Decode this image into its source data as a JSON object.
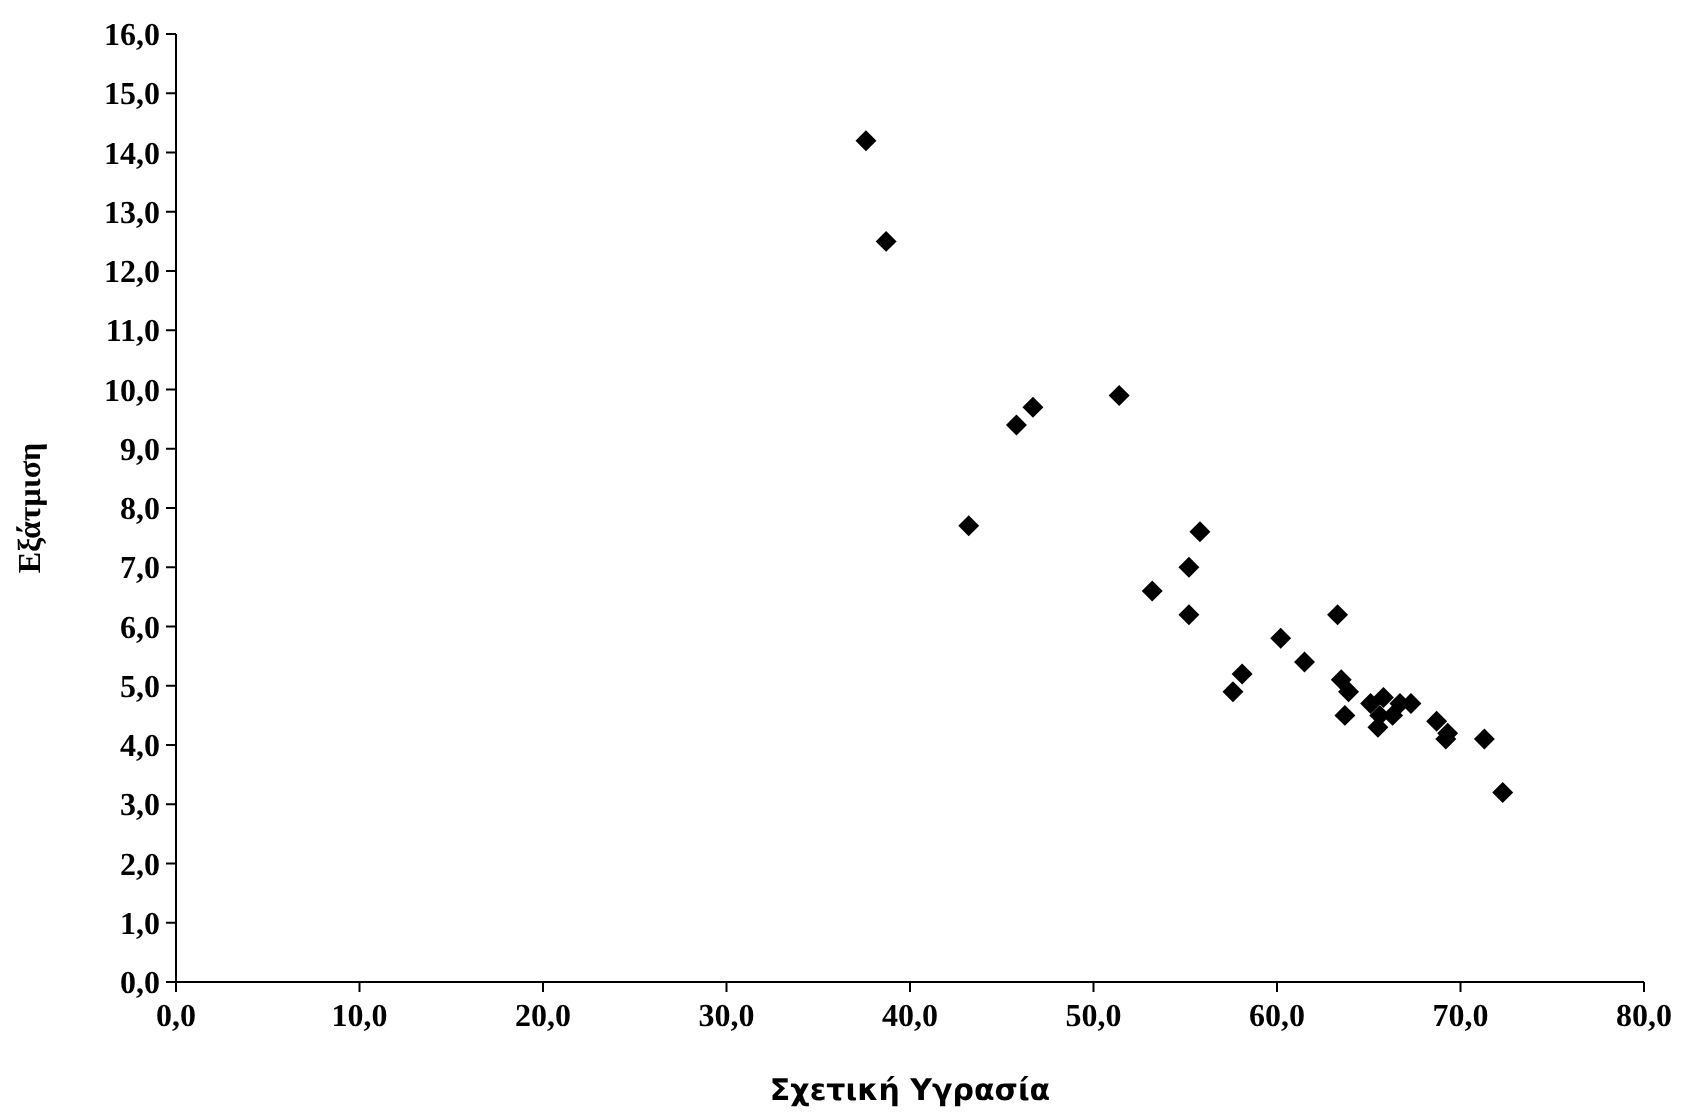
{
  "chart_data": {
    "type": "scatter",
    "xlabel": "Σχετική Υγρασία",
    "ylabel": "Εξάτμιση",
    "marker": "diamond",
    "grid": false,
    "xlim": [
      0,
      80
    ],
    "ylim": [
      0,
      16
    ],
    "xticks": [
      {
        "value": 0,
        "label": "0,0"
      },
      {
        "value": 10,
        "label": "10,0"
      },
      {
        "value": 20,
        "label": "20,0"
      },
      {
        "value": 30,
        "label": "30,0"
      },
      {
        "value": 40,
        "label": "40,0"
      },
      {
        "value": 50,
        "label": "50,0"
      },
      {
        "value": 60,
        "label": "60,0"
      },
      {
        "value": 70,
        "label": "70,0"
      },
      {
        "value": 80,
        "label": "80,0"
      }
    ],
    "yticks": [
      {
        "value": 0,
        "label": "0,0"
      },
      {
        "value": 1,
        "label": "1,0"
      },
      {
        "value": 2,
        "label": "2,0"
      },
      {
        "value": 3,
        "label": "3,0"
      },
      {
        "value": 4,
        "label": "4,0"
      },
      {
        "value": 5,
        "label": "5,0"
      },
      {
        "value": 6,
        "label": "6,0"
      },
      {
        "value": 7,
        "label": "7,0"
      },
      {
        "value": 8,
        "label": "8,0"
      },
      {
        "value": 9,
        "label": "9,0"
      },
      {
        "value": 10,
        "label": "10,0"
      },
      {
        "value": 11,
        "label": "11,0"
      },
      {
        "value": 12,
        "label": "12,0"
      },
      {
        "value": 13,
        "label": "13,0"
      },
      {
        "value": 14,
        "label": "14,0"
      },
      {
        "value": 15,
        "label": "15,0"
      },
      {
        "value": 16,
        "label": "16,0"
      }
    ],
    "series": [
      {
        "color": "#000000",
        "x": [
          37.6,
          38.7,
          46.7,
          45.8,
          51.4,
          43.2,
          55.8,
          55.2,
          53.2,
          55.2,
          63.3,
          60.2,
          61.5,
          58.1,
          57.6,
          63.5,
          63.9,
          63.7,
          65.1,
          65.8,
          65.6,
          65.5,
          66.3,
          66.7,
          67.3,
          68.7,
          69.2,
          69.3,
          71.3,
          72.3
        ],
        "values": [
          14.2,
          12.5,
          9.7,
          9.4,
          9.9,
          7.7,
          7.6,
          7.0,
          6.6,
          6.2,
          6.2,
          5.8,
          5.4,
          5.2,
          4.9,
          5.1,
          4.9,
          4.5,
          4.7,
          4.8,
          4.5,
          4.3,
          4.5,
          4.7,
          4.7,
          4.4,
          4.1,
          4.2,
          4.1,
          3.2
        ]
      }
    ]
  }
}
